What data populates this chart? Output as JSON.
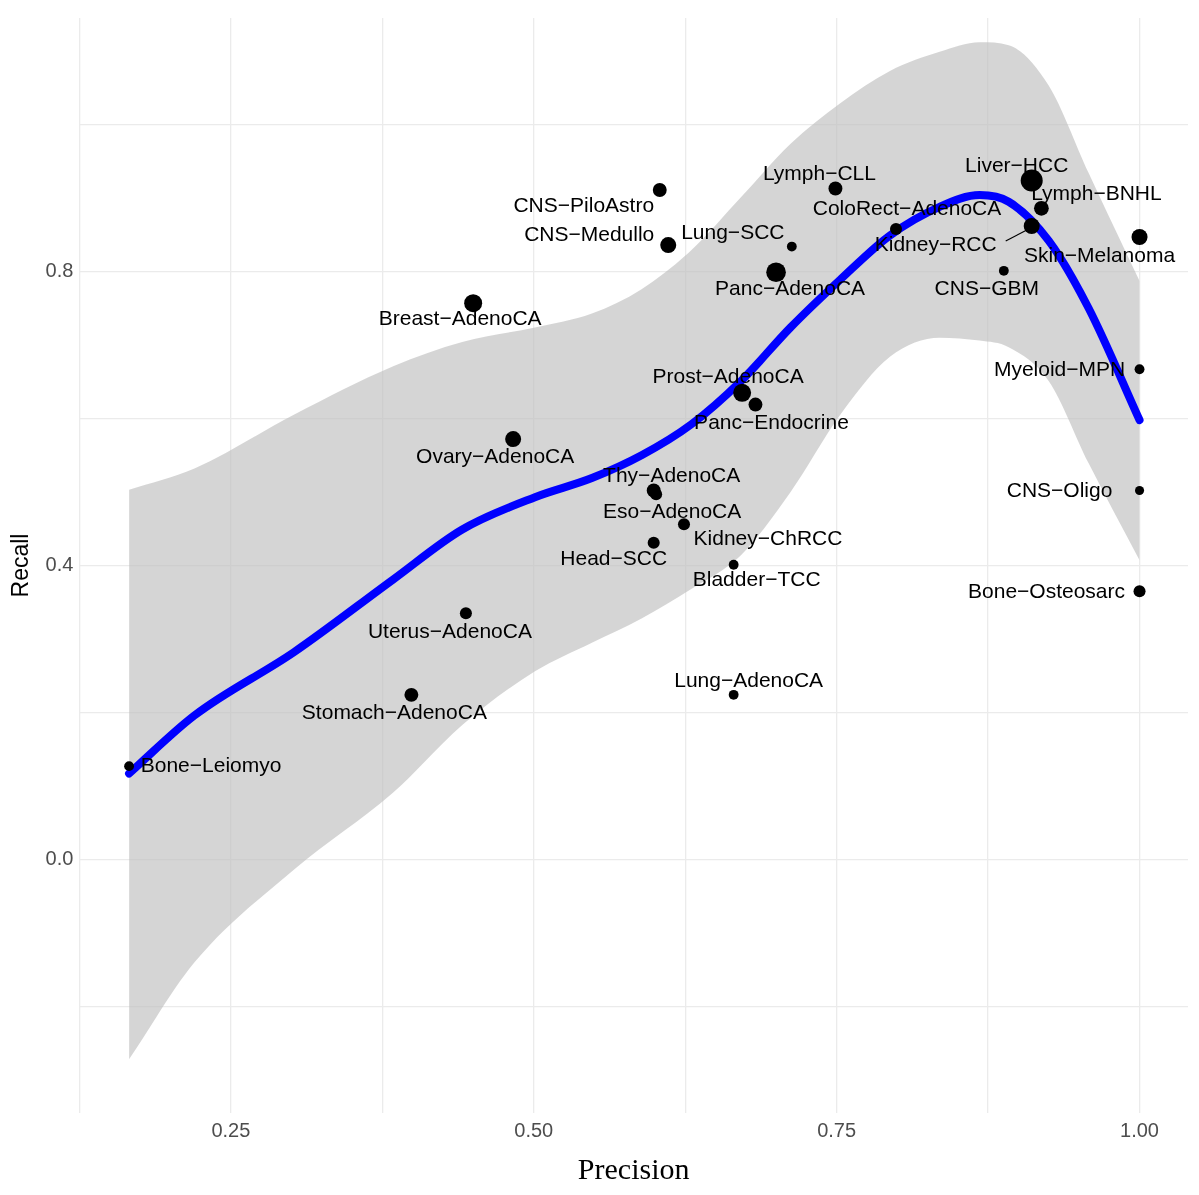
{
  "chart_data": {
    "type": "bubble",
    "xlabel": "Precision",
    "ylabel": "Recall",
    "xlim": [
      0.125,
      1.04
    ],
    "ylim": [
      -0.345,
      1.145
    ],
    "xticks": [
      {
        "value": 0.125,
        "label": null
      },
      0.25,
      {
        "value": 0.375,
        "label": null
      },
      {
        "value": 0.5,
        "label": "0.50"
      },
      {
        "value": 0.625,
        "label": null
      },
      0.75,
      {
        "value": 0.875,
        "label": null
      },
      {
        "value": 1,
        "label": "1.00"
      }
    ],
    "yticks": [
      {
        "value": -0.2,
        "label": null
      },
      {
        "value": 0,
        "label": "0.0"
      },
      {
        "value": 0.2,
        "label": null
      },
      0.4,
      {
        "value": 0.6,
        "label": null
      },
      0.8,
      {
        "value": 1,
        "label": null
      }
    ],
    "grid": true,
    "legend": false,
    "marker": "circle",
    "series": [
      {
        "color": "#000000",
        "x": [
          0.166,
          0.399,
          0.444,
          0.483,
          0.45,
          0.604,
          0.611,
          0.713,
          0.749,
          0.7,
          0.672,
          0.683,
          0.599,
          0.601,
          0.624,
          0.599,
          0.665,
          0.665,
          0.799,
          0.911,
          0.919,
          0.911,
          1.0,
          0.888,
          1.0,
          1.0,
          1.0
        ],
        "values": [
          0.127,
          0.224,
          0.335,
          0.572,
          0.757,
          0.911,
          0.836,
          0.834,
          0.913,
          0.799,
          0.635,
          0.619,
          0.502,
          0.497,
          0.456,
          0.431,
          0.401,
          0.224,
          0.858,
          0.924,
          0.886,
          0.862,
          0.847,
          0.801,
          0.667,
          0.502,
          0.365
        ],
        "sizes": [
          0.2,
          0.4,
          0.3,
          0.53,
          0.67,
          0.4,
          0.53,
          0.2,
          0.4,
          0.8,
          0.67,
          0.4,
          0.4,
          0.3,
          0.3,
          0.3,
          0.2,
          0.2,
          0.3,
          1,
          0.45,
          0.53,
          0.53,
          0.2,
          0.2,
          0.17,
          0.3
        ]
      },
      {
        "type": "line",
        "color": "#0000ff",
        "marker": "none",
        "x": [
          0.166,
          0.22,
          0.302,
          0.384,
          0.441,
          0.501,
          0.548,
          0.589,
          0.63,
          0.671,
          0.712,
          0.753,
          0.794,
          0.835,
          0.868,
          0.892,
          0.925,
          0.958,
          1.0
        ],
        "values": [
          0.117,
          0.196,
          0.282,
          0.381,
          0.449,
          0.493,
          0.519,
          0.55,
          0.592,
          0.651,
          0.724,
          0.789,
          0.849,
          0.888,
          0.904,
          0.895,
          0.842,
          0.75,
          0.598
        ],
        "lower": [
          -0.272,
          -0.14,
          -0.014,
          0.091,
          0.183,
          0.256,
          0.295,
          0.328,
          0.368,
          0.414,
          0.5,
          0.605,
          0.684,
          0.71,
          0.706,
          0.697,
          0.651,
          0.539,
          0.407
        ],
        "upper": [
          0.503,
          0.532,
          0.605,
          0.671,
          0.704,
          0.724,
          0.743,
          0.776,
          0.829,
          0.901,
          0.974,
          1.029,
          1.073,
          1.099,
          1.112,
          1.108,
          1.053,
          0.934,
          0.787
        ]
      }
    ],
    "annotations": [
      {
        "text": "Bone−Leiomyo",
        "x": 0.166,
        "y": 0.127
      },
      {
        "text": "Stomach−AdenoCA",
        "x": 0.399,
        "y": 0.224
      },
      {
        "text": "Uterus−AdenoCA",
        "x": 0.444,
        "y": 0.335
      },
      {
        "text": "Ovary−AdenoCA",
        "x": 0.483,
        "y": 0.572
      },
      {
        "text": "Breast−AdenoCA",
        "x": 0.45,
        "y": 0.757
      },
      {
        "text": "CNS−PiloAstro",
        "x": 0.604,
        "y": 0.911
      },
      {
        "text": "CNS−Medullo",
        "x": 0.611,
        "y": 0.836
      },
      {
        "text": "Lung−SCC",
        "x": 0.713,
        "y": 0.834
      },
      {
        "text": "Lymph−CLL",
        "x": 0.749,
        "y": 0.913
      },
      {
        "text": "Panc−AdenoCA",
        "x": 0.7,
        "y": 0.799
      },
      {
        "text": "Prost−AdenoCA",
        "x": 0.672,
        "y": 0.635
      },
      {
        "text": "Panc−Endocrine",
        "x": 0.683,
        "y": 0.619
      },
      {
        "text": "Thy−AdenoCA",
        "x": 0.599,
        "y": 0.502
      },
      {
        "text": "Eso−AdenoCA",
        "x": 0.601,
        "y": 0.497
      },
      {
        "text": "Kidney−ChRCC",
        "x": 0.624,
        "y": 0.456
      },
      {
        "text": "Head−SCC",
        "x": 0.599,
        "y": 0.431
      },
      {
        "text": "Bladder−TCC",
        "x": 0.665,
        "y": 0.401
      },
      {
        "text": "Lung−AdenoCA",
        "x": 0.665,
        "y": 0.224
      },
      {
        "text": "ColoRect−AdenoCA",
        "x": 0.799,
        "y": 0.858
      },
      {
        "text": "Liver−HCC",
        "x": 0.911,
        "y": 0.924
      },
      {
        "text": "Lymph−BNHL",
        "x": 0.919,
        "y": 0.886
      },
      {
        "text": "Kidney−RCC",
        "x": 0.911,
        "y": 0.862
      },
      {
        "text": "Skin−Melanoma",
        "x": 1.0,
        "y": 0.847
      },
      {
        "text": "CNS−GBM",
        "x": 0.888,
        "y": 0.801
      },
      {
        "text": "Myeloid−MPN",
        "x": 1.0,
        "y": 0.667
      },
      {
        "text": "CNS−Oligo",
        "x": 1.0,
        "y": 0.502
      },
      {
        "text": "Bone−Osteosarc",
        "x": 1.0,
        "y": 0.365
      }
    ]
  }
}
